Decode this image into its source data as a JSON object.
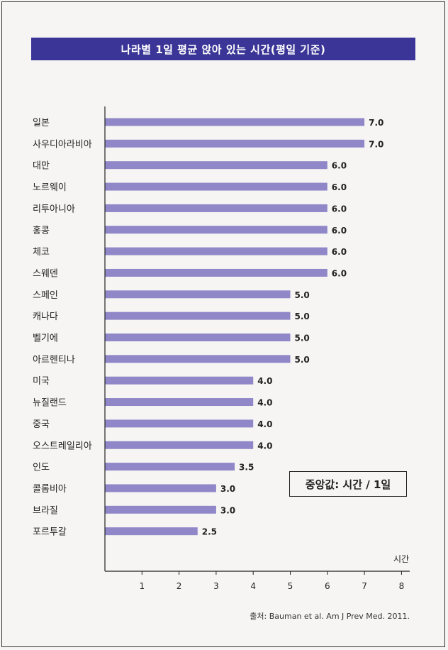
{
  "page": {
    "title": "나라별 1일 평균 앉아 있는 시간(평일 기준)",
    "median_note": "중앙값: 시간 / 1일",
    "source": "출처: Bauman et al. Am J Prev Med. 2011."
  },
  "colors": {
    "bar": "#8f87c8",
    "banner": "#3a3596",
    "axis": "#222222"
  },
  "chart_data": {
    "type": "bar",
    "orientation": "horizontal",
    "title": "나라별 1일 평균 앉아 있는 시간(평일 기준)",
    "categories": [
      "일본",
      "사우디아라비아",
      "대만",
      "노르웨이",
      "리투아니아",
      "홍콩",
      "체코",
      "스웨덴",
      "스페인",
      "캐나다",
      "벨기에",
      "아르헨티나",
      "미국",
      "뉴질랜드",
      "중국",
      "오스트레일리아",
      "인도",
      "콜롬비아",
      "브라질",
      "포르투갈"
    ],
    "values": [
      7.0,
      7.0,
      6.0,
      6.0,
      6.0,
      6.0,
      6.0,
      6.0,
      5.0,
      5.0,
      5.0,
      5.0,
      4.0,
      4.0,
      4.0,
      4.0,
      3.5,
      3.0,
      3.0,
      2.5
    ],
    "value_labels": [
      "7.0",
      "7.0",
      "6.0",
      "6.0",
      "6.0",
      "6.0",
      "6.0",
      "6.0",
      "5.0",
      "5.0",
      "5.0",
      "5.0",
      "4.0",
      "4.0",
      "4.0",
      "4.0",
      "3.5",
      "3.0",
      "3.0",
      "2.5"
    ],
    "xlabel": "시간",
    "xlim": [
      0,
      8
    ],
    "xticks": [
      "1",
      "2",
      "3",
      "4",
      "5",
      "6",
      "7",
      "8"
    ],
    "grid": false,
    "annotation": "중앙값: 시간 / 1일"
  }
}
